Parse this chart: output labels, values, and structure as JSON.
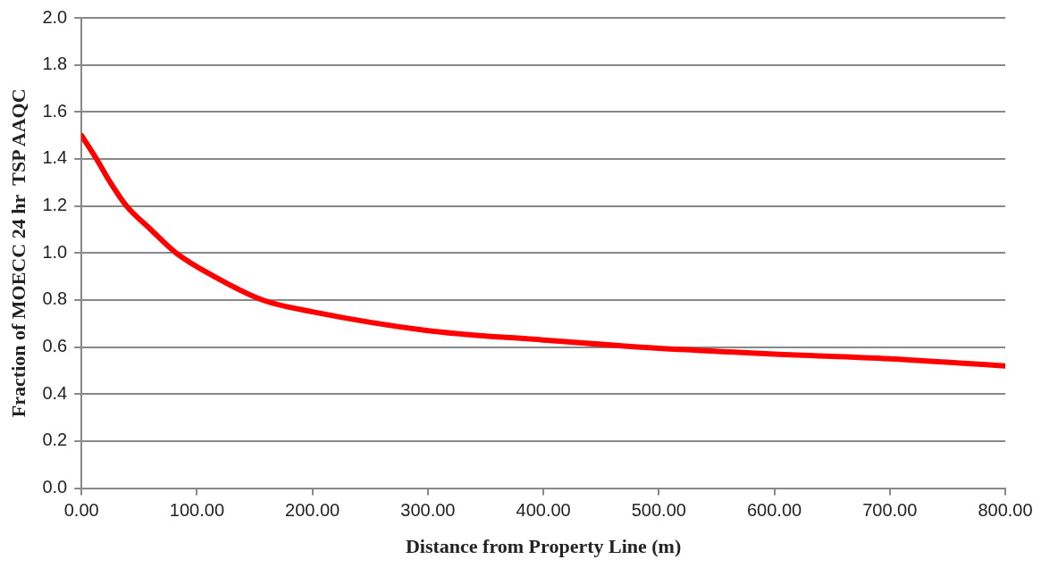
{
  "chart_data": {
    "type": "line",
    "xlabel": "Distance from Property Line (m)",
    "ylabel": "Fraction of MOECC 24 hr  TSP AAQC",
    "x": [
      0,
      13,
      25,
      39,
      60,
      82,
      115,
      157,
      200,
      300,
      400,
      500,
      600,
      700,
      800
    ],
    "series": [
      {
        "color": "#ff0000",
        "values": [
          1.5,
          1.4,
          1.3,
          1.2,
          1.1,
          1.0,
          0.9,
          0.8,
          0.75,
          0.67,
          0.63,
          0.595,
          0.57,
          0.55,
          0.52
        ]
      }
    ],
    "xlim": [
      0,
      800
    ],
    "xticks": [
      {
        "value": 0,
        "label": "0.00"
      },
      {
        "value": 100,
        "label": "100.00"
      },
      {
        "value": 200,
        "label": "200.00"
      },
      {
        "value": 300,
        "label": "300.00"
      },
      {
        "value": 400,
        "label": "400.00"
      },
      {
        "value": 500,
        "label": "500.00"
      },
      {
        "value": 600,
        "label": "600.00"
      },
      {
        "value": 700,
        "label": "700.00"
      },
      {
        "value": 800,
        "label": "800.00"
      }
    ],
    "ylim": [
      0,
      2
    ],
    "yticks": [
      {
        "value": 0,
        "label": "0.0"
      },
      {
        "value": 0.2,
        "label": "0.2"
      },
      {
        "value": 0.4,
        "label": "0.4"
      },
      {
        "value": 0.6,
        "label": "0.6"
      },
      {
        "value": 0.8,
        "label": "0.8"
      },
      {
        "value": 1,
        "label": "1.0"
      },
      {
        "value": 1.2,
        "label": "1.2"
      },
      {
        "value": 1.4,
        "label": "1.4"
      },
      {
        "value": 1.6,
        "label": "1.6"
      },
      {
        "value": 1.8,
        "label": "1.8"
      },
      {
        "value": 2,
        "label": "2.0"
      }
    ],
    "grid": "y",
    "marker": "none",
    "line_style": "solid",
    "legend": false
  }
}
